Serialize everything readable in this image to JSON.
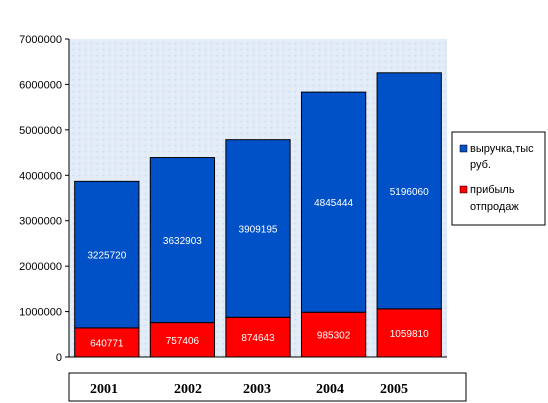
{
  "chart_data": {
    "type": "bar",
    "stacked": true,
    "title": "",
    "xlabel": "",
    "ylabel": "",
    "categories": [
      "2001",
      "2002",
      "2003",
      "2004",
      "2005"
    ],
    "ylim": [
      0,
      7000000
    ],
    "y_ticks": [
      "0",
      "1000000",
      "2000000",
      "3000000",
      "4000000",
      "5000000",
      "6000000",
      "7000000"
    ],
    "grid": false,
    "legend_position": "right",
    "series": [
      {
        "name": "прибыль отпродаж",
        "color": "#ff0000",
        "values": [
          640771,
          757406,
          874643,
          985302,
          1059810
        ]
      },
      {
        "name": "выручка,тыс руб.",
        "color": "#0050c8",
        "values": [
          3225720,
          3632903,
          3909195,
          4845444,
          5196060
        ]
      }
    ],
    "legend": [
      {
        "lines": [
          "выручка,тыс",
          "руб."
        ],
        "color": "#0050c8"
      },
      {
        "lines": [
          "прибыль",
          "отпродаж"
        ],
        "color": "#ff0000"
      }
    ]
  }
}
